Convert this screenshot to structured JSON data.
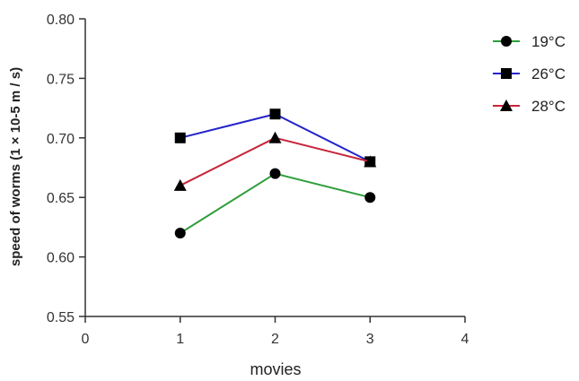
{
  "chart_data": {
    "type": "line",
    "title": "",
    "xlabel": "movies",
    "ylabel": "speed of worms (1 × 10-5 m / s)",
    "xlim": [
      0,
      4
    ],
    "ylim": [
      0.55,
      0.8
    ],
    "x_ticks": [
      "0",
      "1",
      "2",
      "3",
      "4"
    ],
    "y_ticks": [
      "0.55",
      "0.60",
      "0.65",
      "0.70",
      "0.75",
      "0.80"
    ],
    "x": [
      1,
      2,
      3
    ],
    "legend_position": "top-right",
    "grid": false,
    "series": [
      {
        "name": "19°C",
        "color": "#2e9e3a",
        "marker": "circle",
        "values": [
          0.62,
          0.67,
          0.65
        ]
      },
      {
        "name": "26°C",
        "color": "#2424c8",
        "marker": "square",
        "values": [
          0.7,
          0.72,
          0.68
        ]
      },
      {
        "name": "28°C",
        "color": "#c8243a",
        "marker": "triangle",
        "values": [
          0.66,
          0.7,
          0.68
        ]
      }
    ]
  }
}
